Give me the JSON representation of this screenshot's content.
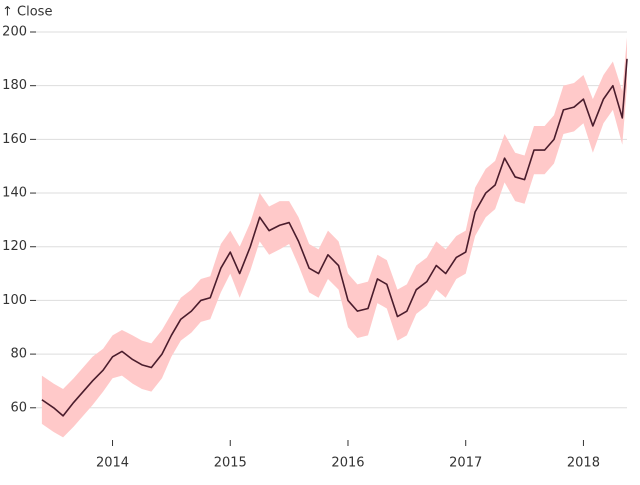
{
  "chart_data": {
    "type": "line-band",
    "y_label": "↑ Close",
    "x": [
      2013.4,
      2013.5,
      2013.58,
      2013.67,
      2013.75,
      2013.83,
      2013.92,
      2014,
      2014.08,
      2014.17,
      2014.25,
      2014.33,
      2014.42,
      2014.5,
      2014.58,
      2014.67,
      2014.75,
      2014.83,
      2014.92,
      2015,
      2015.08,
      2015.17,
      2015.25,
      2015.33,
      2015.42,
      2015.5,
      2015.58,
      2015.67,
      2015.75,
      2015.83,
      2015.92,
      2016,
      2016.08,
      2016.17,
      2016.25,
      2016.33,
      2016.42,
      2016.5,
      2016.58,
      2016.67,
      2016.75,
      2016.83,
      2016.92,
      2017,
      2017.08,
      2017.17,
      2017.25,
      2017.33,
      2017.42,
      2017.5,
      2017.58,
      2017.67,
      2017.75,
      2017.83,
      2017.92,
      2018,
      2018.08,
      2018.17,
      2018.25,
      2018.33,
      2018.37
    ],
    "series": [
      {
        "name": "Close",
        "color": "#4a1c2c",
        "values": [
          63,
          60,
          57,
          62,
          66,
          70,
          74,
          79,
          81,
          78,
          76,
          75,
          80,
          87,
          93,
          96,
          100,
          101,
          112,
          118,
          110,
          120,
          131,
          126,
          128,
          129,
          122,
          112,
          110,
          117,
          113,
          100,
          96,
          97,
          108,
          106,
          94,
          96,
          104,
          107,
          113,
          110,
          116,
          118,
          133,
          140,
          143,
          153,
          146,
          145,
          156,
          156,
          160,
          171,
          172,
          175,
          165,
          175,
          180,
          168,
          190
        ]
      }
    ],
    "band": {
      "color": "#ffc9c9",
      "upper": [
        72,
        69,
        67,
        71,
        75,
        79,
        82,
        87,
        89,
        87,
        85,
        84,
        89,
        95,
        101,
        104,
        108,
        109,
        121,
        126,
        120,
        129,
        140,
        135,
        137,
        137,
        131,
        121,
        119,
        126,
        122,
        110,
        106,
        107,
        117,
        115,
        104,
        106,
        113,
        116,
        122,
        119,
        124,
        126,
        142,
        149,
        152,
        162,
        155,
        154,
        165,
        165,
        169,
        180,
        181,
        184,
        175,
        184,
        189,
        178,
        198
      ],
      "lower": [
        54,
        51,
        49,
        53,
        57,
        61,
        66,
        71,
        72,
        69,
        67,
        66,
        71,
        79,
        85,
        88,
        92,
        93,
        103,
        110,
        101,
        111,
        122,
        117,
        119,
        121,
        113,
        103,
        101,
        108,
        104,
        90,
        86,
        87,
        99,
        97,
        85,
        87,
        95,
        98,
        104,
        101,
        108,
        110,
        124,
        131,
        134,
        144,
        137,
        136,
        147,
        147,
        151,
        162,
        163,
        166,
        155,
        166,
        171,
        158,
        180
      ]
    },
    "xlim": [
      2013.35,
      2018.37
    ],
    "xticks": [
      2014,
      2015,
      2016,
      2017,
      2018
    ],
    "ylim": [
      48,
      200
    ],
    "yticks": [
      60,
      80,
      100,
      120,
      140,
      160,
      180,
      200
    ],
    "grid": true
  }
}
